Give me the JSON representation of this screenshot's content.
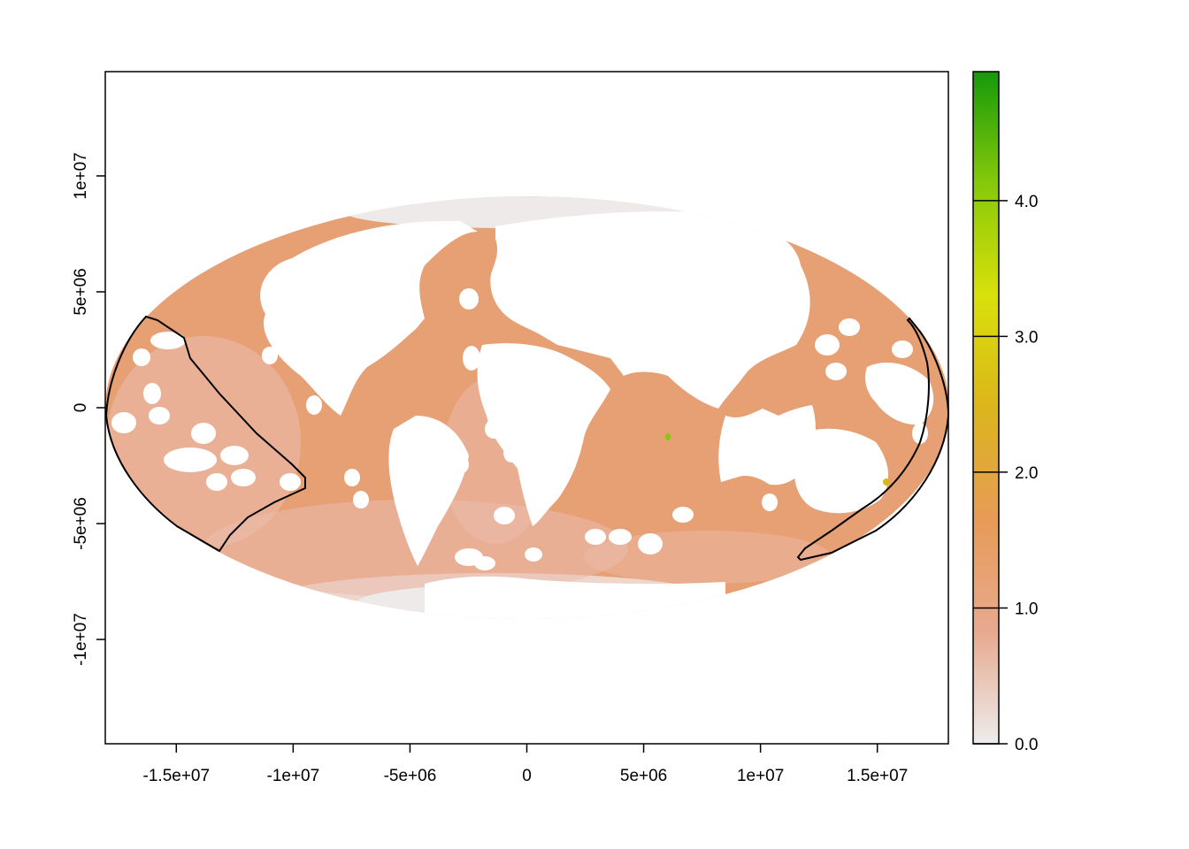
{
  "figure": {
    "title": "",
    "projection": "Mollweide world raster with ocean values",
    "background_color": "#ffffff"
  },
  "chart_data": {
    "type": "heatmap",
    "x_axis": {
      "label": "",
      "range": [
        -18040095,
        18040095
      ],
      "ticks": [
        {
          "value": -15000000,
          "label": "-1.5e+07"
        },
        {
          "value": -10000000,
          "label": "-1e+07"
        },
        {
          "value": -5000000,
          "label": "-5e+06"
        },
        {
          "value": 0,
          "label": "0"
        },
        {
          "value": 5000000,
          "label": "5e+06"
        },
        {
          "value": 10000000,
          "label": "1e+07"
        },
        {
          "value": 15000000,
          "label": "1.5e+07"
        }
      ]
    },
    "y_axis": {
      "label": "",
      "range": [
        -14500000,
        14500000
      ],
      "ticks": [
        {
          "value": 10000000,
          "label": "1e+07"
        },
        {
          "value": 5000000,
          "label": "5e+06"
        },
        {
          "value": 0,
          "label": "0"
        },
        {
          "value": -5000000,
          "label": "-5e+06"
        },
        {
          "value": -10000000,
          "label": "-1e+07"
        }
      ]
    },
    "legend": {
      "placement": "right",
      "range": [
        0,
        4.95
      ],
      "colors": [
        "#ececec",
        "#e8a98f",
        "#e79b57",
        "#dbb51c",
        "#d9e00b",
        "#86c90a",
        "#16990a"
      ],
      "ticks": [
        {
          "value": 0.0,
          "label": "0.0"
        },
        {
          "value": 1.0,
          "label": "1.0"
        },
        {
          "value": 2.0,
          "label": "2.0"
        },
        {
          "value": 3.0,
          "label": "3.0"
        },
        {
          "value": 4.0,
          "label": "4.0"
        }
      ]
    },
    "value_colors": {
      "ocean_typical": "#e79f74",
      "ocean_low": "#ebbcae",
      "polar": "#eeeae9",
      "land": "#ffffff"
    },
    "outlined_regions": [
      "western Pacific region",
      "eastern region near Australia"
    ]
  }
}
